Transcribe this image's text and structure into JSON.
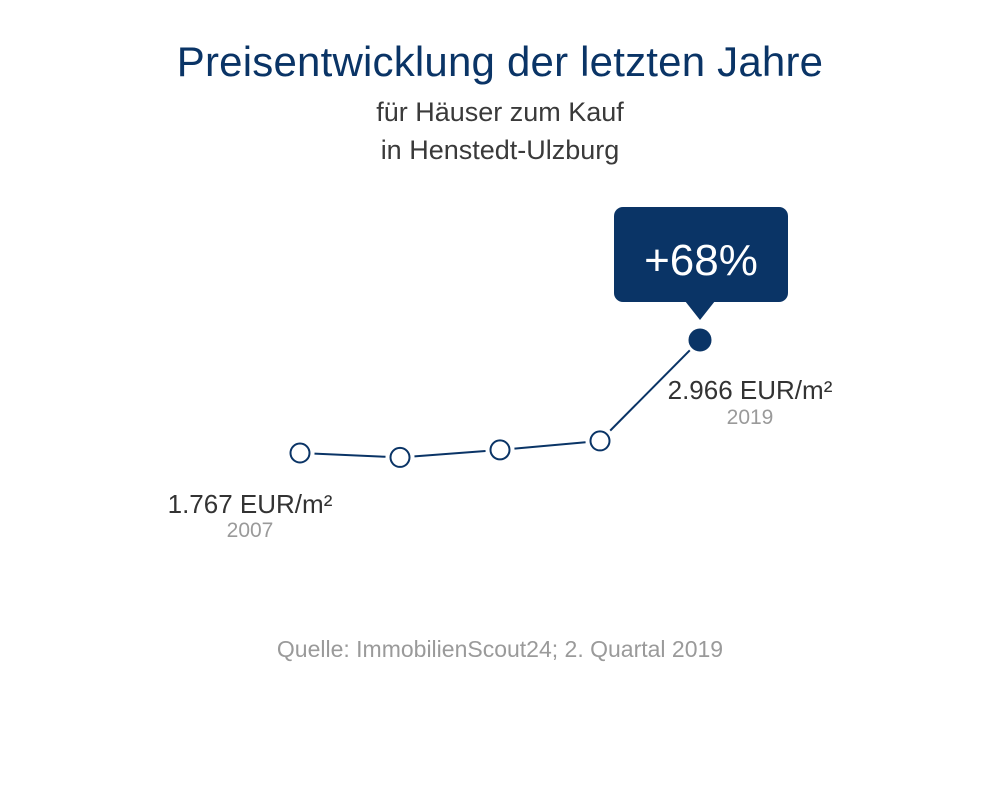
{
  "title": "Preisentwicklung der letzten Jahre",
  "subtitle_line1": "für Häuser zum Kauf",
  "subtitle_line2": "in Henstedt-Ulzburg",
  "source": "Quelle: ImmobilienScout24; 2. Quartal 2019",
  "colors": {
    "accent": "#0a3466",
    "label_text": "#333333",
    "year_text": "#9a9a9a"
  },
  "chart_data": {
    "type": "line",
    "x": [
      2007,
      2010,
      2013,
      2016,
      2019
    ],
    "values": [
      1767,
      1720,
      1800,
      1895,
      2966
    ],
    "start": {
      "value_label": "1.767 EUR/m²",
      "year_label": "2007"
    },
    "end": {
      "value_label": "2.966 EUR/m²",
      "year_label": "2019"
    },
    "change_label": "+68%",
    "grid": false,
    "axes_visible": false
  }
}
